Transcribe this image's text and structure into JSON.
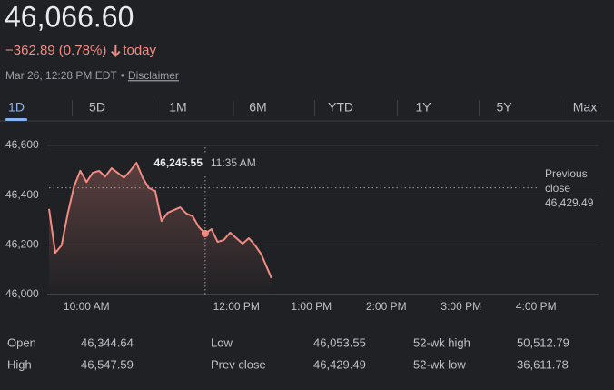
{
  "header": {
    "price": "46,066.60",
    "change": "−362.89 (0.78%)",
    "period": "today",
    "timestamp": "Mar 26, 12:28 PM EDT",
    "bullet": "•",
    "disclaimer": "Disclaimer"
  },
  "tabs": {
    "items": [
      "1D",
      "5D",
      "1M",
      "6M",
      "YTD",
      "1Y",
      "5Y",
      "Max"
    ],
    "selected": "1D"
  },
  "chart_data": {
    "type": "line",
    "color": "#f28b82",
    "x": [
      570,
      575,
      580,
      585,
      590,
      595,
      600,
      605,
      610,
      615,
      620,
      625,
      630,
      635,
      640,
      645,
      650,
      655,
      660,
      665,
      670,
      675,
      680,
      685,
      690,
      695,
      700,
      705,
      710,
      715,
      720,
      725,
      730,
      735,
      740,
      748
    ],
    "values": [
      46344.64,
      46168,
      46198,
      46326,
      46435,
      46498,
      46453,
      46490,
      46498,
      46475,
      46508,
      46490,
      46470,
      46498,
      46530,
      46470,
      46428,
      46417,
      46296,
      46329,
      46340,
      46351,
      46326,
      46315,
      46271,
      46245.55,
      46263,
      46212,
      46220,
      46249,
      46227,
      46205,
      46227,
      46198,
      46161,
      46066.6
    ],
    "xlim": [
      570,
      1010
    ],
    "xticks": [
      {
        "value": 600,
        "label": "10:00 AM"
      },
      {
        "value": 720,
        "label": "12:00 PM"
      },
      {
        "value": 780,
        "label": "1:00 PM"
      },
      {
        "value": 840,
        "label": "2:00 PM"
      },
      {
        "value": 900,
        "label": "3:00 PM"
      },
      {
        "value": 960,
        "label": "4:00 PM"
      }
    ],
    "ylim": [
      46000,
      46600
    ],
    "yticks": [
      {
        "value": 46000,
        "label": "46,000"
      },
      {
        "value": 46200,
        "label": "46,200"
      },
      {
        "value": 46400,
        "label": "46,400"
      },
      {
        "value": 46600,
        "label": "46,600"
      }
    ],
    "grid": true,
    "reference_line": {
      "label": "Previous close",
      "value": 46429.49,
      "value_label": "46,429.49"
    },
    "tooltip": {
      "x": 695,
      "x_label": "11:35 AM",
      "value": 46245.55,
      "value_label": "46,245.55"
    }
  },
  "stats": [
    [
      {
        "label": "Open",
        "value": "46,344.64"
      },
      {
        "label": "Low",
        "value": "46,053.55"
      },
      {
        "label": "52-wk high",
        "value": "50,512.79"
      }
    ],
    [
      {
        "label": "High",
        "value": "46,547.59"
      },
      {
        "label": "Prev close",
        "value": "46,429.49"
      },
      {
        "label": "52-wk low",
        "value": "36,611.78"
      }
    ]
  ]
}
